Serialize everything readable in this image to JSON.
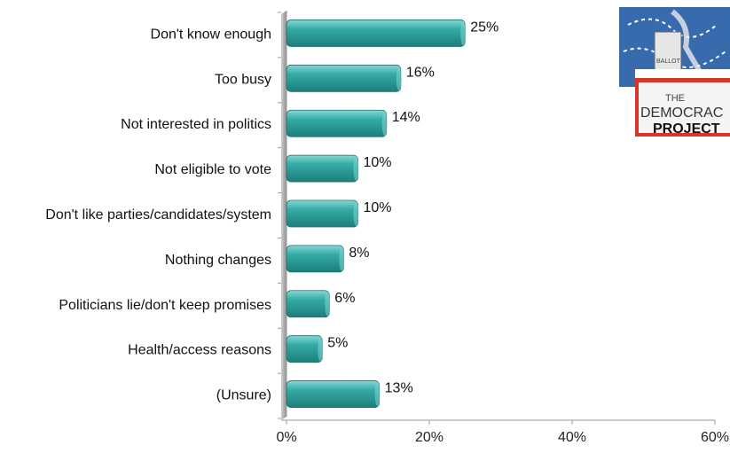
{
  "chart_data": {
    "type": "bar",
    "orientation": "horizontal",
    "categories": [
      "Don't know enough",
      "Too busy",
      "Not interested in politics",
      "Not eligible to vote",
      "Don't like parties/candidates/system",
      "Nothing changes",
      "Politicians lie/don't keep promises",
      "Health/access reasons",
      "(Unsure)"
    ],
    "values": [
      25,
      16,
      14,
      10,
      10,
      8,
      6,
      5,
      13
    ],
    "data_labels": [
      "25%",
      "16%",
      "14%",
      "10%",
      "10%",
      "8%",
      "6%",
      "5%",
      "13%"
    ],
    "x_ticks": [
      "0%",
      "20%",
      "40%",
      "60%"
    ],
    "xlim": [
      0,
      60
    ],
    "grid": false,
    "legend": "none",
    "bar_color": "#2ea39f",
    "bar_highlight": "#7fd3cf",
    "bar_shadow": "#1c6f6c"
  },
  "logo": {
    "text_the": "THE",
    "text_democracy": "DEMOCRAC",
    "text_project": "PROJECT",
    "text_ballot": "BALLOT"
  }
}
